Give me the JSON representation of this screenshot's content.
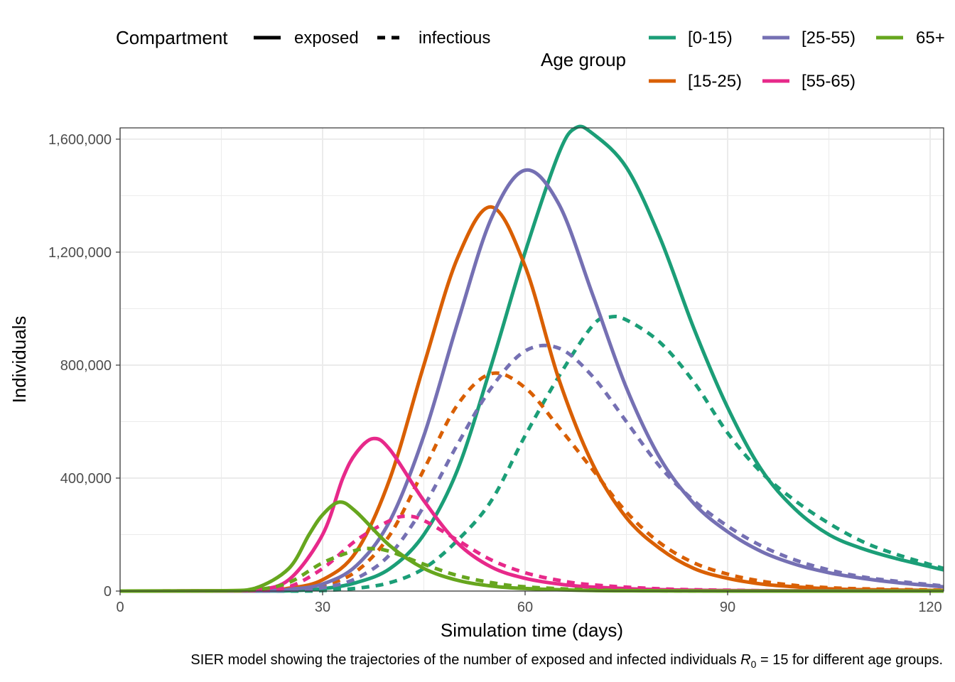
{
  "chart_data": {
    "type": "line",
    "xlabel": "Simulation time (days)",
    "ylabel": "Individuals",
    "xlim": [
      0,
      122
    ],
    "ylim": [
      0,
      1640000
    ],
    "x_ticks": [
      0,
      30,
      60,
      90,
      120
    ],
    "y_ticks": [
      0,
      400000,
      800000,
      1200000,
      1600000
    ],
    "x_tick_labels": [
      "0",
      "30",
      "60",
      "90",
      "120"
    ],
    "y_tick_labels": [
      "0",
      "400,000",
      "800,000",
      "1,200,000",
      "1,600,000"
    ],
    "grid": true,
    "legend_position": "top",
    "caption_parts": {
      "before": "SIER model showing the trajectories of the number of exposed and infected individuals ",
      "symbol": "R",
      "subscript": "0",
      "after": " = 15 for different age groups."
    },
    "legend": {
      "compartment_title": "Compartment",
      "compartments": [
        {
          "label": "exposed",
          "linetype": "solid"
        },
        {
          "label": "infectious",
          "linetype": "dashed"
        }
      ],
      "age_title": "Age group",
      "age_groups": [
        {
          "label": "[0-15)",
          "color": "#1b9e77"
        },
        {
          "label": "[15-25)",
          "color": "#d95f02"
        },
        {
          "label": "[25-55)",
          "color": "#7570b3"
        },
        {
          "label": "[55-65)",
          "color": "#e7298a"
        },
        {
          "label": "65+",
          "color": "#66a61e"
        }
      ]
    },
    "series": [
      {
        "group": "[0-15)",
        "compartment": "exposed",
        "color": "#1b9e77",
        "linetype": "solid",
        "x": [
          0,
          20,
          25,
          30,
          35,
          40,
          45,
          50,
          55,
          60,
          65,
          67.5,
          70,
          75,
          80,
          85,
          90,
          95,
          100,
          105,
          110,
          115,
          122
        ],
        "y": [
          0,
          100,
          1000,
          8000,
          30000,
          80000,
          200000,
          430000,
          800000,
          1200000,
          1550000,
          1640000,
          1620000,
          1500000,
          1250000,
          930000,
          650000,
          430000,
          290000,
          200000,
          150000,
          115000,
          75000
        ]
      },
      {
        "group": "[0-15)",
        "compartment": "infectious",
        "color": "#1b9e77",
        "linetype": "dashed",
        "x": [
          0,
          25,
          30,
          35,
          40,
          45,
          50,
          55,
          60,
          65,
          70,
          72.5,
          75,
          80,
          85,
          90,
          95,
          100,
          105,
          110,
          115,
          122
        ],
        "y": [
          0,
          0,
          2000,
          10000,
          30000,
          80000,
          180000,
          320000,
          550000,
          760000,
          940000,
          970000,
          960000,
          880000,
          740000,
          560000,
          420000,
          320000,
          240000,
          175000,
          130000,
          80000
        ]
      },
      {
        "group": "[15-25)",
        "compartment": "exposed",
        "color": "#d95f02",
        "linetype": "solid",
        "x": [
          0,
          20,
          25,
          30,
          35,
          40,
          45,
          50,
          55,
          60,
          65,
          70,
          75,
          80,
          85,
          90,
          95,
          100,
          105,
          110,
          122
        ],
        "y": [
          0,
          2000,
          10000,
          40000,
          140000,
          400000,
          800000,
          1180000,
          1360000,
          1150000,
          750000,
          450000,
          260000,
          150000,
          80000,
          45000,
          25000,
          15000,
          8000,
          5000,
          2000
        ]
      },
      {
        "group": "[15-25)",
        "compartment": "infectious",
        "color": "#d95f02",
        "linetype": "dashed",
        "x": [
          0,
          20,
          25,
          30,
          35,
          40,
          45,
          50,
          55,
          60,
          65,
          70,
          75,
          80,
          85,
          90,
          95,
          100,
          105,
          110,
          122
        ],
        "y": [
          0,
          1000,
          5000,
          20000,
          70000,
          200000,
          430000,
          660000,
          770000,
          720000,
          580000,
          430000,
          280000,
          170000,
          100000,
          60000,
          35000,
          20000,
          12000,
          8000,
          3000
        ]
      },
      {
        "group": "[25-55)",
        "compartment": "exposed",
        "color": "#7570b3",
        "linetype": "solid",
        "x": [
          0,
          20,
          25,
          30,
          35,
          40,
          45,
          50,
          55,
          60,
          65,
          70,
          75,
          80,
          85,
          90,
          95,
          100,
          105,
          110,
          115,
          122
        ],
        "y": [
          0,
          1000,
          6000,
          25000,
          90000,
          250000,
          550000,
          950000,
          1320000,
          1490000,
          1370000,
          1050000,
          720000,
          470000,
          310000,
          210000,
          140000,
          95000,
          65000,
          45000,
          30000,
          15000
        ]
      },
      {
        "group": "[25-55)",
        "compartment": "infectious",
        "color": "#7570b3",
        "linetype": "dashed",
        "x": [
          0,
          20,
          25,
          30,
          35,
          40,
          45,
          50,
          55,
          60,
          65,
          70,
          75,
          80,
          85,
          90,
          95,
          100,
          105,
          110,
          115,
          122
        ],
        "y": [
          0,
          500,
          3000,
          12000,
          45000,
          130000,
          300000,
          520000,
          720000,
          850000,
          860000,
          760000,
          600000,
          440000,
          320000,
          230000,
          160000,
          110000,
          75000,
          50000,
          35000,
          18000
        ]
      },
      {
        "group": "[55-65)",
        "compartment": "exposed",
        "color": "#e7298a",
        "linetype": "solid",
        "x": [
          0,
          15,
          20,
          25,
          30,
          33,
          35,
          37.5,
          40,
          45,
          50,
          55,
          60,
          65,
          70,
          80,
          90,
          100,
          122
        ],
        "y": [
          0,
          500,
          4000,
          40000,
          200000,
          400000,
          490000,
          540000,
          500000,
          320000,
          170000,
          85000,
          45000,
          25000,
          14000,
          5000,
          2000,
          1000,
          0
        ]
      },
      {
        "group": "[55-65)",
        "compartment": "infectious",
        "color": "#e7298a",
        "linetype": "dashed",
        "x": [
          0,
          15,
          20,
          25,
          30,
          35,
          40,
          42.5,
          45,
          50,
          55,
          60,
          65,
          70,
          80,
          90,
          100,
          122
        ],
        "y": [
          0,
          300,
          2000,
          15000,
          80000,
          180000,
          250000,
          265000,
          250000,
          180000,
          110000,
          65000,
          38000,
          22000,
          8000,
          3000,
          1000,
          0
        ]
      },
      {
        "group": "65+",
        "compartment": "exposed",
        "color": "#66a61e",
        "linetype": "solid",
        "x": [
          0,
          15,
          20,
          25,
          28,
          30,
          32.5,
          35,
          40,
          45,
          50,
          55,
          60,
          70,
          80,
          90,
          122
        ],
        "y": [
          0,
          1000,
          10000,
          80000,
          200000,
          270000,
          315000,
          280000,
          160000,
          80000,
          38000,
          18000,
          9000,
          2000,
          500,
          0,
          0
        ]
      },
      {
        "group": "65+",
        "compartment": "infectious",
        "color": "#66a61e",
        "linetype": "dashed",
        "x": [
          0,
          15,
          20,
          25,
          30,
          35,
          37.5,
          40,
          45,
          50,
          55,
          60,
          70,
          80,
          90,
          122
        ],
        "y": [
          0,
          500,
          4000,
          30000,
          100000,
          145000,
          150000,
          140000,
          95000,
          55000,
          30000,
          15000,
          4000,
          1000,
          0,
          0
        ]
      }
    ]
  }
}
